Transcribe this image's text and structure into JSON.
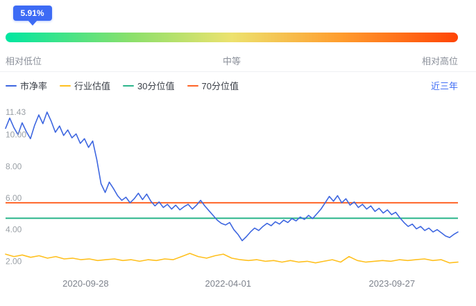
{
  "percentile": {
    "label": "5.91%",
    "value": 5.91,
    "badge_color": "#3D6BF5"
  },
  "gradient_bar": {
    "low_label": "相对低位",
    "mid_label": "中等",
    "high_label": "相对高位",
    "stops": [
      "#00E6A1 0%",
      "#8CE06B 28%",
      "#EDE26E 50%",
      "#FF9D2E 74%",
      "#FF4405 100%"
    ]
  },
  "legend": {
    "items": [
      {
        "label": "市净率",
        "color": "#3D66E0"
      },
      {
        "label": "行业估值",
        "color": "#FFC01E"
      },
      {
        "label": "30分位值",
        "color": "#2BB58B"
      },
      {
        "label": "70分位值",
        "color": "#FF6326"
      }
    ],
    "range_label": "近三年"
  },
  "chart_data": {
    "type": "line",
    "ylim": [
      1.45,
      11.95
    ],
    "grid": false,
    "legend_position": "top",
    "y_ticks": [
      {
        "value": 11.43,
        "label": "11.43"
      },
      {
        "value": 10.0,
        "label": "10.00"
      },
      {
        "value": 8.0,
        "label": "8.00"
      },
      {
        "value": 6.0,
        "label": "6.00"
      },
      {
        "value": 4.0,
        "label": "4.00"
      },
      {
        "value": 2.0,
        "label": "2.00"
      }
    ],
    "x_ticks": [
      {
        "label": "2020-09-28",
        "pos": 0.177
      },
      {
        "label": "2022-04-01",
        "pos": 0.492
      },
      {
        "label": "2023-09-27",
        "pos": 0.854
      }
    ],
    "series": [
      {
        "name": "70分位值",
        "type": "hline",
        "value": 5.7,
        "color": "#FF6326"
      },
      {
        "name": "30分位值",
        "type": "hline",
        "value": 4.72,
        "color": "#2BB58B"
      },
      {
        "name": "行业估值",
        "type": "line",
        "color": "#FFC01E",
        "values": [
          2.45,
          2.3,
          2.4,
          2.25,
          2.35,
          2.2,
          2.3,
          2.15,
          2.2,
          2.1,
          2.15,
          2.05,
          2.1,
          2.15,
          2.05,
          2.1,
          2.0,
          2.1,
          2.05,
          2.15,
          2.1,
          2.3,
          2.5,
          2.3,
          2.2,
          2.35,
          2.45,
          2.2,
          2.1,
          2.05,
          2.1,
          2.0,
          2.05,
          1.95,
          2.05,
          1.95,
          2.0,
          1.9,
          2.0,
          2.1,
          1.95,
          2.3,
          2.05,
          1.95,
          2.0,
          2.05,
          2.0,
          2.1,
          2.05,
          2.1,
          2.15,
          2.05,
          2.1,
          1.9,
          1.95
        ]
      },
      {
        "name": "市净率",
        "type": "line",
        "color": "#3D66E0",
        "values": [
          10.4,
          11.05,
          10.45,
          10.0,
          10.75,
          10.2,
          9.75,
          10.6,
          11.25,
          10.7,
          11.43,
          10.85,
          10.15,
          10.55,
          9.95,
          10.3,
          9.8,
          10.05,
          9.45,
          9.75,
          9.2,
          9.6,
          8.4,
          6.9,
          6.35,
          7.0,
          6.6,
          6.15,
          5.85,
          6.05,
          5.7,
          5.95,
          6.3,
          5.9,
          6.25,
          5.8,
          5.5,
          5.75,
          5.4,
          5.6,
          5.3,
          5.55,
          5.25,
          5.45,
          5.6,
          5.3,
          5.55,
          5.85,
          5.5,
          5.2,
          4.9,
          4.6,
          4.4,
          4.3,
          4.45,
          4.0,
          3.7,
          3.3,
          3.55,
          3.85,
          4.1,
          3.95,
          4.2,
          4.4,
          4.25,
          4.5,
          4.35,
          4.6,
          4.45,
          4.7,
          4.55,
          4.8,
          4.65,
          4.9,
          4.7,
          5.0,
          5.3,
          5.7,
          6.1,
          5.8,
          6.15,
          5.7,
          5.95,
          5.55,
          5.75,
          5.4,
          5.6,
          5.3,
          5.5,
          5.15,
          5.35,
          5.05,
          5.25,
          4.95,
          5.1,
          4.75,
          4.45,
          4.2,
          4.35,
          4.05,
          4.2,
          3.95,
          4.1,
          3.85,
          4.0,
          3.8,
          3.6,
          3.5,
          3.7,
          3.85
        ]
      }
    ]
  }
}
